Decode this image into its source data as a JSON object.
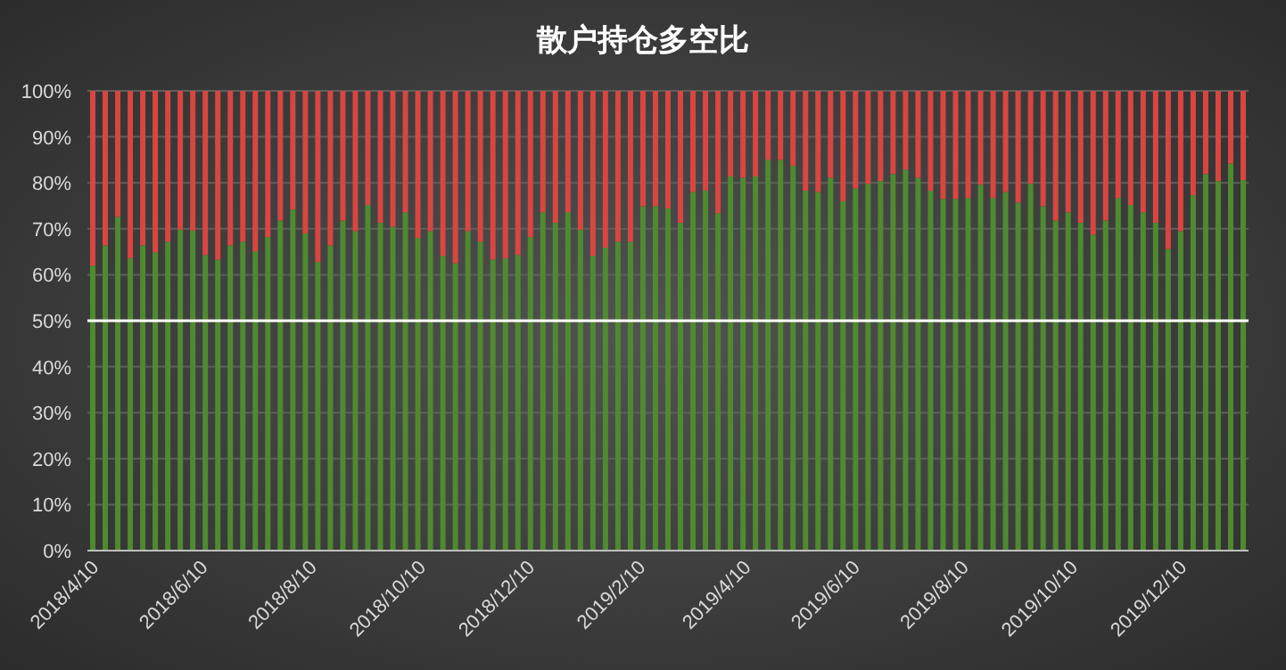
{
  "chart_data": {
    "type": "bar",
    "title": "散户持仓多空比",
    "stacked": true,
    "grid": "y",
    "x": [
      "2018-04-10",
      "2018-04-17",
      "2018-04-24",
      "2018-05-01",
      "2018-05-08",
      "2018-05-15",
      "2018-05-22",
      "2018-05-29",
      "2018-06-05",
      "2018-06-12",
      "2018-06-19",
      "2018-06-26",
      "2018-07-03",
      "2018-07-10",
      "2018-07-17",
      "2018-07-24",
      "2018-07-31",
      "2018-08-07",
      "2018-08-14",
      "2018-08-21",
      "2018-08-28",
      "2018-09-04",
      "2018-09-11",
      "2018-09-18",
      "2018-09-25",
      "2018-10-02",
      "2018-10-09",
      "2018-10-16",
      "2018-10-23",
      "2018-10-30",
      "2018-11-06",
      "2018-11-13",
      "2018-11-20",
      "2018-11-27",
      "2018-12-04",
      "2018-12-11",
      "2018-12-18",
      "2018-12-25",
      "2019-01-01",
      "2019-01-08",
      "2019-01-15",
      "2019-01-22",
      "2019-01-29",
      "2019-02-05",
      "2019-02-12",
      "2019-02-19",
      "2019-02-26",
      "2019-03-05",
      "2019-03-12",
      "2019-03-19",
      "2019-03-26",
      "2019-04-02",
      "2019-04-09",
      "2019-04-16",
      "2019-04-23",
      "2019-04-30",
      "2019-05-07",
      "2019-05-14",
      "2019-05-21",
      "2019-05-28",
      "2019-06-04",
      "2019-06-11",
      "2019-06-18",
      "2019-06-25",
      "2019-07-02",
      "2019-07-09",
      "2019-07-16",
      "2019-07-23",
      "2019-07-30",
      "2019-08-06",
      "2019-08-13",
      "2019-08-20",
      "2019-08-27",
      "2019-09-03",
      "2019-09-10",
      "2019-09-17",
      "2019-09-24",
      "2019-10-01",
      "2019-10-08",
      "2019-10-15",
      "2019-10-22",
      "2019-10-29",
      "2019-11-05",
      "2019-11-12",
      "2019-11-19",
      "2019-11-26",
      "2019-12-03",
      "2019-12-10",
      "2019-12-17",
      "2019-12-24",
      "2019-12-31",
      "2020-01-07",
      "2020-01-14"
    ],
    "series": [
      {
        "color": "#4f8a2f",
        "values": [
          62.0,
          66.4,
          72.6,
          63.6,
          66.4,
          64.9,
          67.2,
          69.8,
          69.6,
          64.3,
          63.3,
          66.4,
          67.2,
          65.1,
          68.2,
          71.8,
          74.2,
          69.0,
          62.8,
          66.4,
          71.8,
          69.5,
          75.2,
          71.3,
          70.5,
          73.6,
          68.0,
          69.5,
          64.1,
          62.5,
          69.5,
          67.2,
          63.3,
          63.6,
          64.3,
          68.2,
          73.6,
          71.3,
          73.6,
          69.8,
          64.1,
          65.9,
          67.2,
          67.2,
          74.9,
          74.9,
          74.4,
          71.3,
          78.0,
          78.3,
          73.4,
          81.4,
          81.1,
          81.4,
          85.0,
          85.0,
          83.7,
          78.3,
          78.0,
          81.1,
          76.0,
          78.8,
          79.8,
          80.4,
          81.9,
          82.9,
          81.1,
          78.3,
          76.5,
          76.5,
          76.7,
          79.6,
          76.7,
          78.0,
          75.7,
          79.8,
          74.9,
          71.8,
          73.6,
          71.3,
          68.7,
          71.8,
          76.7,
          75.2,
          73.6,
          71.3,
          65.6,
          69.5,
          77.3,
          81.9,
          80.4,
          84.2,
          80.6
        ]
      },
      {
        "color": "#d9463f",
        "values": [
          38.0,
          33.6,
          27.4,
          36.4,
          33.6,
          35.1,
          32.8,
          30.2,
          30.4,
          35.7,
          36.7,
          33.6,
          32.8,
          34.9,
          31.8,
          28.2,
          25.8,
          31.0,
          37.2,
          33.6,
          28.2,
          30.5,
          24.8,
          28.7,
          29.5,
          26.4,
          32.0,
          30.5,
          35.9,
          37.5,
          30.5,
          32.8,
          36.7,
          36.4,
          35.7,
          31.8,
          26.4,
          28.7,
          26.4,
          30.2,
          35.9,
          34.1,
          32.8,
          32.8,
          25.1,
          25.1,
          25.6,
          28.7,
          22.0,
          21.7,
          26.6,
          18.6,
          18.9,
          18.6,
          15.0,
          15.0,
          16.3,
          21.7,
          22.0,
          18.9,
          24.0,
          21.2,
          20.2,
          19.6,
          18.1,
          17.1,
          18.9,
          21.7,
          23.5,
          23.5,
          23.3,
          20.4,
          23.3,
          22.0,
          24.3,
          20.2,
          25.1,
          28.2,
          26.4,
          28.7,
          31.3,
          28.2,
          23.3,
          24.8,
          26.4,
          28.7,
          34.4,
          30.5,
          22.7,
          18.1,
          19.6,
          15.8,
          19.4
        ]
      }
    ],
    "xlim": [
      "2018-04-07",
      "2020-01-17"
    ],
    "xticks": [
      {
        "value": "2018-04-10",
        "label": "2018/4/10"
      },
      {
        "value": "2018-06-10",
        "label": "2018/6/10"
      },
      {
        "value": "2018-08-10",
        "label": "2018/8/10"
      },
      {
        "value": "2018-10-10",
        "label": "2018/10/10"
      },
      {
        "value": "2018-12-10",
        "label": "2018/12/10"
      },
      {
        "value": "2019-02-10",
        "label": "2019/2/10"
      },
      {
        "value": "2019-04-10",
        "label": "2019/4/10"
      },
      {
        "value": "2019-06-10",
        "label": "2019/6/10"
      },
      {
        "value": "2019-08-10",
        "label": "2019/8/10"
      },
      {
        "value": "2019-10-10",
        "label": "2019/10/10"
      },
      {
        "value": "2019-12-10",
        "label": "2019/12/10"
      }
    ],
    "ylim": [
      0,
      100
    ],
    "yticks": [
      {
        "value": 0,
        "label": "0%"
      },
      {
        "value": 10,
        "label": "10%"
      },
      {
        "value": 20,
        "label": "20%"
      },
      {
        "value": 30,
        "label": "30%"
      },
      {
        "value": 40,
        "label": "40%"
      },
      {
        "value": 50,
        "label": "50%"
      },
      {
        "value": 60,
        "label": "60%"
      },
      {
        "value": 70,
        "label": "70%"
      },
      {
        "value": 80,
        "label": "80%"
      },
      {
        "value": 90,
        "label": "90%"
      },
      {
        "value": 100,
        "label": "100%"
      }
    ],
    "ref_lines": [
      {
        "axis": "y",
        "value": 50,
        "color": "#ffffff"
      }
    ]
  }
}
